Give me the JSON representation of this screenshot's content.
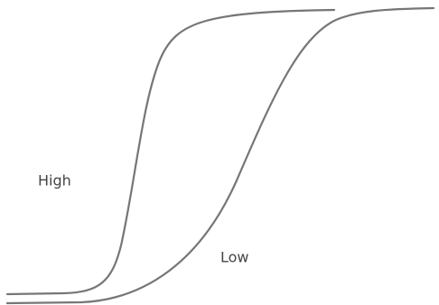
{
  "labels": {
    "high": "High",
    "low": "Low"
  }
}
